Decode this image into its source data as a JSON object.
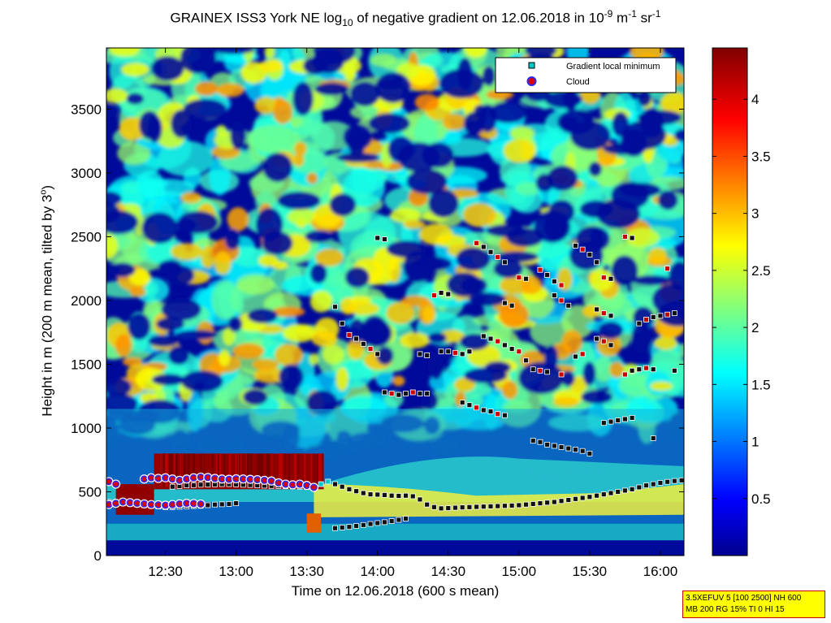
{
  "figure": {
    "title_prefix": "GRAINEX ISS3 York NE log",
    "title_sub": "10",
    "title_mid": " of negative gradient on 12.06.2018 in 10",
    "title_sup1": "-9",
    "title_mid2": " m",
    "title_sup2": "-1",
    "title_mid3": " sr",
    "title_sup3": "-1",
    "xlabel": "Time on 12.06.2018 (600 s mean)",
    "ylabel_prefix": "Height in m (200 m mean, tilted by 3",
    "ylabel_sup": "o",
    "ylabel_suffix": ")",
    "info_line1": "3.5XEFUV 5 [100 2500] NH 600",
    "info_line2": "MB 200 RG 15% TI 0 HI 15"
  },
  "chart_data": {
    "type": "heatmap",
    "x_axis": {
      "label": "Time on 12.06.2018 (600 s mean)",
      "range_hours": [
        12.083,
        16.167
      ],
      "ticks": [
        {
          "value": 12.5,
          "label": "12:30"
        },
        {
          "value": 13.0,
          "label": "13:00"
        },
        {
          "value": 13.5,
          "label": "13:30"
        },
        {
          "value": 14.0,
          "label": "14:00"
        },
        {
          "value": 14.5,
          "label": "14:30"
        },
        {
          "value": 15.0,
          "label": "15:00"
        },
        {
          "value": 15.5,
          "label": "15:30"
        },
        {
          "value": 16.0,
          "label": "16:00"
        }
      ]
    },
    "y_axis": {
      "label": "Height in m (200 m mean, tilted by 3°)",
      "range": [
        0,
        3980
      ],
      "ticks": [
        0,
        500,
        1000,
        1500,
        2000,
        2500,
        3000,
        3500
      ]
    },
    "colorbar": {
      "range": [
        0,
        4.45
      ],
      "ticks": [
        0.5,
        1,
        1.5,
        2,
        2.5,
        3,
        3.5,
        4
      ],
      "tick_labels": [
        "0.5",
        "1",
        "1.5",
        "2",
        "2.5",
        "3",
        "3.5",
        "4"
      ],
      "colormap": "jet"
    },
    "legend": {
      "placement": "top-right",
      "entries": [
        {
          "label": "Gradient local minimum",
          "marker": "square",
          "color": "#00c8c8"
        },
        {
          "label": "Cloud",
          "marker": "circle",
          "color": "#dd0000"
        }
      ]
    },
    "series": [
      {
        "name": "Gradient local minimum",
        "marker": "square",
        "points": [
          [
            12.1,
            420
          ],
          [
            12.15,
            415
          ],
          [
            12.2,
            410
          ],
          [
            12.25,
            405
          ],
          [
            12.3,
            400
          ],
          [
            12.35,
            395
          ],
          [
            12.4,
            390
          ],
          [
            12.45,
            385
          ],
          [
            12.5,
            380
          ],
          [
            12.55,
            380
          ],
          [
            12.6,
            382
          ],
          [
            12.65,
            385
          ],
          [
            12.7,
            388
          ],
          [
            12.75,
            390
          ],
          [
            12.8,
            395
          ],
          [
            12.85,
            400
          ],
          [
            12.9,
            402
          ],
          [
            12.95,
            405
          ],
          [
            13.0,
            410
          ],
          [
            12.55,
            540
          ],
          [
            12.6,
            545
          ],
          [
            12.65,
            550
          ],
          [
            12.7,
            552
          ],
          [
            12.75,
            555
          ],
          [
            12.8,
            556
          ],
          [
            12.85,
            558
          ],
          [
            12.9,
            560
          ],
          [
            12.95,
            560
          ],
          [
            13.0,
            558
          ],
          [
            13.05,
            555
          ],
          [
            13.1,
            553
          ],
          [
            13.15,
            550
          ],
          [
            13.2,
            548
          ],
          [
            13.25,
            546
          ],
          [
            13.3,
            545
          ],
          [
            13.35,
            543
          ],
          [
            13.4,
            542
          ],
          [
            13.45,
            540
          ],
          [
            13.5,
            538
          ],
          [
            13.55,
            535
          ],
          [
            13.6,
            560
          ],
          [
            13.65,
            580
          ],
          [
            13.7,
            560
          ],
          [
            13.75,
            540
          ],
          [
            13.8,
            520
          ],
          [
            13.85,
            505
          ],
          [
            13.9,
            490
          ],
          [
            13.95,
            480
          ],
          [
            14.0,
            478
          ],
          [
            14.05,
            475
          ],
          [
            14.1,
            470
          ],
          [
            14.15,
            468
          ],
          [
            14.2,
            470
          ],
          [
            14.25,
            465
          ],
          [
            14.3,
            440
          ],
          [
            14.35,
            400
          ],
          [
            14.4,
            380
          ],
          [
            14.45,
            370
          ],
          [
            14.5,
            372
          ],
          [
            14.55,
            375
          ],
          [
            14.6,
            378
          ],
          [
            14.65,
            380
          ],
          [
            14.7,
            382
          ],
          [
            14.75,
            384
          ],
          [
            14.8,
            386
          ],
          [
            14.85,
            388
          ],
          [
            14.9,
            390
          ],
          [
            14.95,
            392
          ],
          [
            15.0,
            395
          ],
          [
            15.05,
            400
          ],
          [
            15.1,
            405
          ],
          [
            15.15,
            410
          ],
          [
            15.2,
            415
          ],
          [
            15.25,
            420
          ],
          [
            15.3,
            428
          ],
          [
            15.35,
            436
          ],
          [
            15.4,
            444
          ],
          [
            15.45,
            452
          ],
          [
            15.5,
            460
          ],
          [
            15.55,
            470
          ],
          [
            15.6,
            480
          ],
          [
            15.65,
            490
          ],
          [
            15.7,
            500
          ],
          [
            15.75,
            510
          ],
          [
            15.8,
            520
          ],
          [
            15.85,
            535
          ],
          [
            15.9,
            550
          ],
          [
            15.95,
            560
          ],
          [
            16.0,
            570
          ],
          [
            16.05,
            578
          ],
          [
            16.1,
            585
          ],
          [
            16.15,
            590
          ],
          [
            13.7,
            215
          ],
          [
            13.75,
            220
          ],
          [
            13.8,
            225
          ],
          [
            13.85,
            232
          ],
          [
            13.9,
            240
          ],
          [
            13.95,
            248
          ],
          [
            14.0,
            255
          ],
          [
            14.05,
            262
          ],
          [
            14.1,
            270
          ],
          [
            14.15,
            280
          ],
          [
            14.2,
            290
          ],
          [
            14.0,
            2490
          ],
          [
            14.05,
            2480
          ],
          [
            14.7,
            2450
          ],
          [
            14.75,
            2420
          ],
          [
            14.8,
            2380
          ],
          [
            14.85,
            2340
          ],
          [
            14.9,
            2300
          ],
          [
            15.0,
            2180
          ],
          [
            15.05,
            2170
          ],
          [
            15.15,
            2240
          ],
          [
            15.2,
            2200
          ],
          [
            15.25,
            2150
          ],
          [
            15.3,
            2120
          ],
          [
            15.4,
            2430
          ],
          [
            15.45,
            2400
          ],
          [
            15.5,
            2360
          ],
          [
            15.55,
            2300
          ],
          [
            15.6,
            2180
          ],
          [
            15.65,
            2170
          ],
          [
            15.75,
            2500
          ],
          [
            15.8,
            2490
          ],
          [
            16.05,
            2250
          ],
          [
            13.7,
            1950
          ],
          [
            13.75,
            1820
          ],
          [
            14.4,
            2040
          ],
          [
            14.45,
            2060
          ],
          [
            14.5,
            2050
          ],
          [
            14.9,
            1980
          ],
          [
            14.95,
            1960
          ],
          [
            15.25,
            2040
          ],
          [
            15.3,
            2000
          ],
          [
            15.35,
            1960
          ],
          [
            15.55,
            1930
          ],
          [
            15.6,
            1900
          ],
          [
            15.65,
            1880
          ],
          [
            15.85,
            1820
          ],
          [
            15.9,
            1850
          ],
          [
            15.95,
            1870
          ],
          [
            16.0,
            1880
          ],
          [
            16.05,
            1890
          ],
          [
            16.1,
            1900
          ],
          [
            13.8,
            1730
          ],
          [
            13.85,
            1700
          ],
          [
            13.9,
            1660
          ],
          [
            13.95,
            1620
          ],
          [
            14.0,
            1580
          ],
          [
            14.3,
            1580
          ],
          [
            14.35,
            1570
          ],
          [
            14.45,
            1600
          ],
          [
            14.5,
            1600
          ],
          [
            14.55,
            1590
          ],
          [
            14.6,
            1580
          ],
          [
            14.65,
            1600
          ],
          [
            14.75,
            1720
          ],
          [
            14.8,
            1700
          ],
          [
            14.85,
            1680
          ],
          [
            14.9,
            1650
          ],
          [
            14.95,
            1620
          ],
          [
            15.0,
            1600
          ],
          [
            15.05,
            1530
          ],
          [
            15.1,
            1460
          ],
          [
            15.15,
            1450
          ],
          [
            15.2,
            1440
          ],
          [
            15.3,
            1420
          ],
          [
            15.4,
            1560
          ],
          [
            15.45,
            1580
          ],
          [
            15.55,
            1700
          ],
          [
            15.6,
            1680
          ],
          [
            15.65,
            1650
          ],
          [
            15.75,
            1420
          ],
          [
            15.8,
            1450
          ],
          [
            15.85,
            1460
          ],
          [
            15.9,
            1470
          ],
          [
            15.95,
            1460
          ],
          [
            16.1,
            1450
          ],
          [
            14.05,
            1280
          ],
          [
            14.1,
            1270
          ],
          [
            14.15,
            1260
          ],
          [
            14.2,
            1270
          ],
          [
            14.25,
            1280
          ],
          [
            14.3,
            1270
          ],
          [
            14.35,
            1270
          ],
          [
            14.6,
            1200
          ],
          [
            14.65,
            1180
          ],
          [
            14.7,
            1160
          ],
          [
            14.75,
            1140
          ],
          [
            14.8,
            1130
          ],
          [
            14.85,
            1110
          ],
          [
            14.9,
            1100
          ],
          [
            15.1,
            900
          ],
          [
            15.15,
            890
          ],
          [
            15.2,
            870
          ],
          [
            15.25,
            860
          ],
          [
            15.3,
            850
          ],
          [
            15.35,
            840
          ],
          [
            15.4,
            830
          ],
          [
            15.45,
            820
          ],
          [
            15.5,
            800
          ],
          [
            15.6,
            1040
          ],
          [
            15.65,
            1050
          ],
          [
            15.7,
            1060
          ],
          [
            15.75,
            1070
          ],
          [
            15.8,
            1080
          ],
          [
            15.95,
            920
          ]
        ]
      },
      {
        "name": "Cloud",
        "marker": "circle",
        "points": [
          [
            12.1,
            580
          ],
          [
            12.15,
            560
          ],
          [
            12.35,
            600
          ],
          [
            12.4,
            610
          ],
          [
            12.45,
            605
          ],
          [
            12.5,
            610
          ],
          [
            12.55,
            600
          ],
          [
            12.6,
            590
          ],
          [
            12.65,
            600
          ],
          [
            12.7,
            610
          ],
          [
            12.75,
            615
          ],
          [
            12.8,
            612
          ],
          [
            12.85,
            605
          ],
          [
            12.9,
            600
          ],
          [
            12.95,
            598
          ],
          [
            13.0,
            602
          ],
          [
            13.05,
            600
          ],
          [
            13.1,
            598
          ],
          [
            13.15,
            595
          ],
          [
            13.2,
            590
          ],
          [
            13.25,
            585
          ],
          [
            13.3,
            570
          ],
          [
            13.35,
            560
          ],
          [
            13.4,
            555
          ],
          [
            13.45,
            560
          ],
          [
            13.5,
            550
          ],
          [
            13.55,
            535
          ],
          [
            12.1,
            400
          ],
          [
            12.15,
            410
          ],
          [
            12.2,
            420
          ],
          [
            12.25,
            415
          ],
          [
            12.3,
            410
          ],
          [
            12.35,
            405
          ],
          [
            12.4,
            400
          ],
          [
            12.45,
            398
          ],
          [
            12.5,
            395
          ],
          [
            12.55,
            400
          ],
          [
            12.6,
            405
          ],
          [
            12.65,
            410
          ],
          [
            12.7,
            408
          ],
          [
            12.75,
            404
          ]
        ]
      }
    ]
  }
}
